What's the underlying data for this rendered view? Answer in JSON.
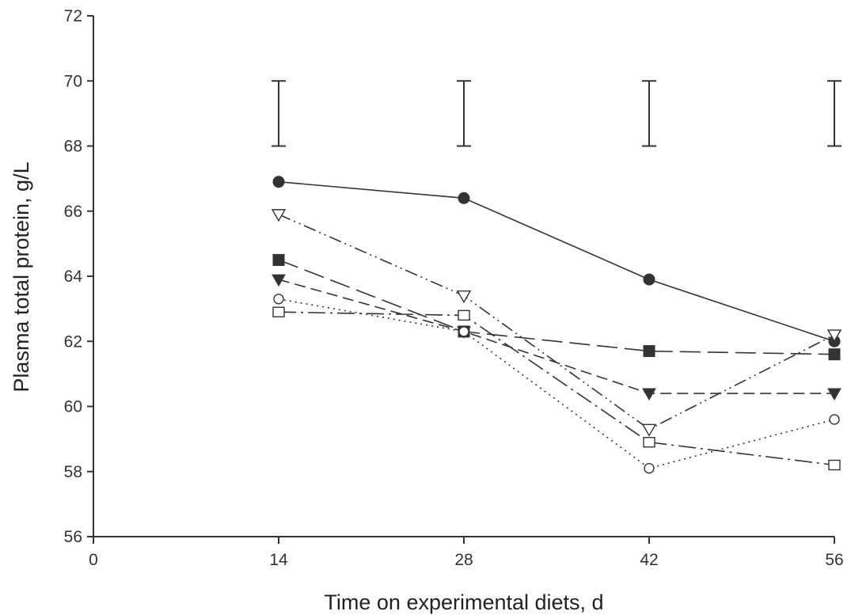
{
  "chart_data": {
    "type": "line",
    "title": "",
    "xlabel": "Time on experimental diets, d",
    "ylabel": "Plasma total protein, g/L",
    "xlim": [
      0,
      56
    ],
    "ylim": [
      56,
      72
    ],
    "x_ticks": [
      0,
      14,
      28,
      42,
      56
    ],
    "y_ticks": [
      56,
      58,
      60,
      62,
      64,
      66,
      68,
      70,
      72
    ],
    "grid": false,
    "legend": "none",
    "x": [
      14,
      28,
      42,
      56
    ],
    "series": [
      {
        "marker": "filled-circle",
        "line_style": "solid",
        "color": "#333333",
        "values": [
          66.9,
          66.4,
          63.9,
          62.0
        ]
      },
      {
        "marker": "open-triangle-down",
        "line_style": "dash-dot-dot",
        "color": "#333333",
        "values": [
          65.9,
          63.4,
          59.3,
          62.2
        ]
      },
      {
        "marker": "filled-square",
        "line_style": "long-dash",
        "color": "#333333",
        "values": [
          64.5,
          62.3,
          61.7,
          61.6
        ]
      },
      {
        "marker": "filled-triangle-down",
        "line_style": "medium-dash",
        "color": "#333333",
        "values": [
          63.9,
          62.3,
          60.4,
          60.4
        ]
      },
      {
        "marker": "open-circle",
        "line_style": "dotted",
        "color": "#333333",
        "values": [
          63.3,
          62.3,
          58.1,
          59.6
        ]
      },
      {
        "marker": "open-square",
        "line_style": "long-dash-dot",
        "color": "#333333",
        "values": [
          62.9,
          62.8,
          58.9,
          58.2
        ]
      }
    ],
    "error_bars": {
      "x": [
        14,
        28,
        42,
        56
      ],
      "low": [
        68.0,
        68.0,
        68.0,
        68.0
      ],
      "high": [
        70.0,
        70.0,
        70.0,
        70.0
      ]
    }
  }
}
